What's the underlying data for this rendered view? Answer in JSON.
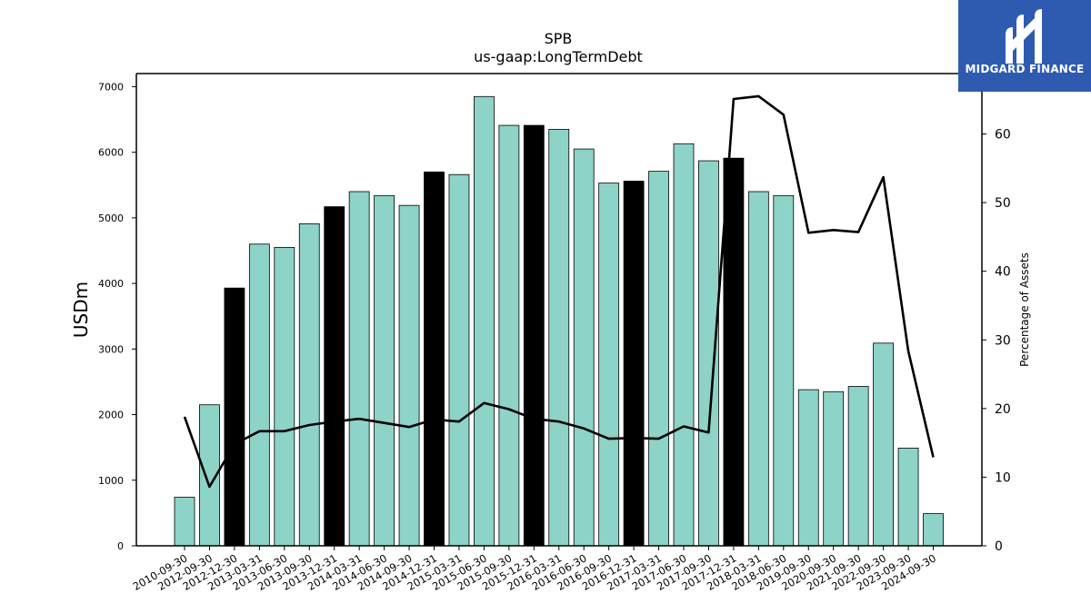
{
  "chart_data": {
    "type": "bar",
    "title": "SPB",
    "subtitle": "us-gaap:LongTermDebt",
    "ylabel": "USDm",
    "y2label": "Percentage of Assets",
    "ylim": [
      0,
      7200
    ],
    "y2lim": [
      0,
      68.8
    ],
    "yticks": [
      0,
      1000,
      2000,
      3000,
      4000,
      5000,
      6000,
      7000
    ],
    "y2ticks": [
      0,
      10,
      20,
      30,
      40,
      50,
      60
    ],
    "categories": [
      "2010-09-30",
      "2012-09-30",
      "2012-12-30",
      "2013-03-31",
      "2013-06-30",
      "2013-09-30",
      "2013-12-31",
      "2014-03-31",
      "2014-06-30",
      "2014-09-30",
      "2014-12-31",
      "2015-03-31",
      "2015-06-30",
      "2015-09-30",
      "2015-12-31",
      "2016-03-31",
      "2016-06-30",
      "2016-09-30",
      "2016-12-31",
      "2017-03-31",
      "2017-06-30",
      "2017-09-30",
      "2017-12-31",
      "2018-03-31",
      "2018-06-30",
      "2019-09-30",
      "2020-09-30",
      "2021-09-30",
      "2022-09-30",
      "2023-09-30",
      "2024-09-30"
    ],
    "series": [
      {
        "type": "bar",
        "values": [
          740,
          2150,
          3930,
          4600,
          4550,
          4910,
          5170,
          5400,
          5340,
          5190,
          5700,
          5660,
          6850,
          6410,
          6410,
          6350,
          6050,
          5530,
          5560,
          5710,
          6130,
          5870,
          5910,
          5400,
          5340,
          2380,
          2350,
          2430,
          3090,
          1490,
          490
        ],
        "highlight": [
          false,
          false,
          true,
          false,
          false,
          false,
          true,
          false,
          false,
          false,
          true,
          false,
          false,
          false,
          true,
          false,
          false,
          false,
          true,
          false,
          false,
          false,
          true,
          false,
          false,
          false,
          false,
          false,
          false,
          false,
          false
        ],
        "color": "#8dd3c7",
        "highlight_color": "#000000"
      },
      {
        "type": "line",
        "axis": "right",
        "values": [
          18.8,
          8.6,
          14.8,
          16.7,
          16.7,
          17.6,
          18.1,
          18.5,
          17.9,
          17.3,
          18.4,
          18.1,
          20.8,
          19.9,
          18.5,
          18.1,
          17.1,
          15.6,
          15.7,
          15.6,
          17.4,
          16.5,
          65.1,
          65.5,
          62.8,
          45.6,
          46.0,
          45.7,
          53.7,
          28.4,
          12.9
        ],
        "color": "#000000"
      }
    ]
  },
  "logo": {
    "text": "MIDGARD FINANCE",
    "color": "#2e5bb0"
  }
}
